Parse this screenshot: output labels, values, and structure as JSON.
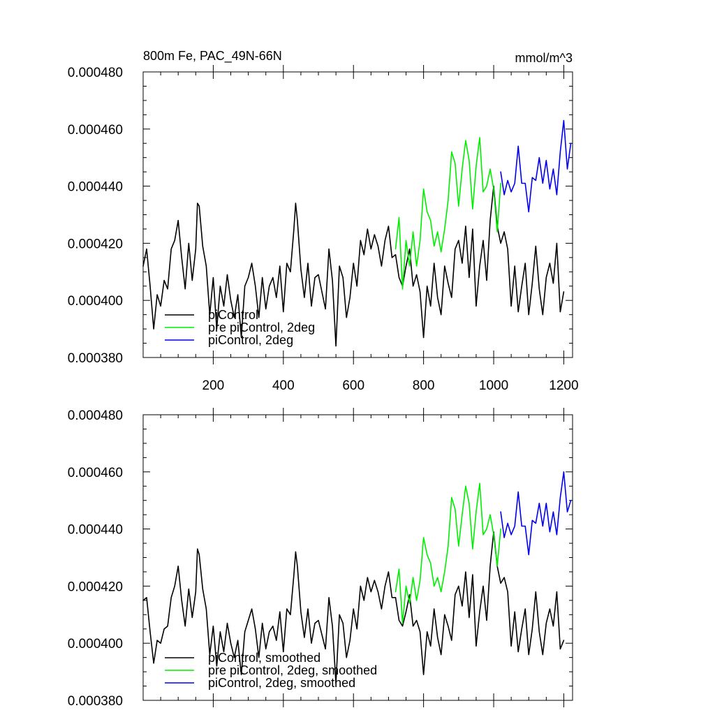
{
  "chart_data": [
    {
      "type": "line",
      "title": "800m Fe, PAC_49N-66N",
      "units": "mmol/m^3",
      "xlim": [
        0,
        1225
      ],
      "ylim": [
        0.00038,
        0.00048
      ],
      "xticks": [
        200,
        400,
        600,
        800,
        1000,
        1200
      ],
      "xtick_labels": [
        "200",
        "400",
        "600",
        "800",
        "1000",
        "1200"
      ],
      "yticks": [
        0.00038,
        0.0004,
        0.00042,
        0.00044,
        0.00046,
        0.00048
      ],
      "ytick_labels": [
        "0.000380",
        "0.000400",
        "0.000420",
        "0.000440",
        "0.000460",
        "0.000480"
      ],
      "legend_position": "bottom-left",
      "series": [
        {
          "name": "piControl",
          "color": "#000000",
          "x": [
            0,
            10,
            20,
            30,
            40,
            50,
            60,
            70,
            80,
            90,
            100,
            110,
            120,
            130,
            140,
            150,
            155,
            160,
            170,
            180,
            190,
            200,
            210,
            220,
            230,
            240,
            250,
            260,
            270,
            280,
            290,
            300,
            310,
            320,
            330,
            340,
            350,
            360,
            370,
            380,
            390,
            400,
            410,
            420,
            430,
            435,
            440,
            450,
            460,
            470,
            480,
            490,
            500,
            510,
            520,
            530,
            540,
            550,
            560,
            570,
            580,
            590,
            600,
            610,
            620,
            630,
            640,
            650,
            660,
            670,
            680,
            690,
            700,
            710,
            720,
            730,
            740,
            750,
            760,
            770,
            780,
            790,
            800,
            810,
            820,
            830,
            840,
            850,
            860,
            870,
            880,
            890,
            900,
            910,
            920,
            930,
            940,
            950,
            960,
            970,
            980,
            990,
            1000,
            1010,
            1020,
            1030,
            1040,
            1050,
            1060,
            1070,
            1080,
            1090,
            1100,
            1110,
            1120,
            1130,
            1140,
            1150,
            1160,
            1170,
            1180,
            1190,
            1200
          ],
          "values": [
            0.000412,
            0.000418,
            0.000405,
            0.00039,
            0.000402,
            0.000398,
            0.000407,
            0.000404,
            0.000418,
            0.000421,
            0.000428,
            0.000415,
            0.000404,
            0.00042,
            0.000407,
            0.000418,
            0.000434,
            0.000433,
            0.000419,
            0.000412,
            0.000395,
            0.000408,
            0.00039,
            0.000405,
            0.000398,
            0.000409,
            0.0004,
            0.000394,
            0.000402,
            0.000387,
            0.000405,
            0.000408,
            0.000413,
            0.000405,
            0.000394,
            0.000408,
            0.000397,
            0.000405,
            0.000408,
            0.000401,
            0.000412,
            0.000396,
            0.000413,
            0.00041,
            0.000425,
            0.000434,
            0.000428,
            0.000411,
            0.000401,
            0.000413,
            0.000398,
            0.000408,
            0.000409,
            0.000403,
            0.000397,
            0.000418,
            0.000407,
            0.000384,
            0.000412,
            0.000408,
            0.000394,
            0.000401,
            0.000413,
            0.000405,
            0.000421,
            0.000416,
            0.000425,
            0.000418,
            0.000423,
            0.000419,
            0.000412,
            0.000421,
            0.000426,
            0.000415,
            0.000416,
            0.000408,
            0.000405,
            0.000412,
            0.000418,
            0.000405,
            0.000409,
            0.000403,
            0.000387,
            0.000405,
            0.000398,
            0.000413,
            0.000401,
            0.000395,
            0.000412,
            0.000406,
            0.000401,
            0.000418,
            0.000421,
            0.000413,
            0.000426,
            0.000408,
            0.000425,
            0.000398,
            0.000412,
            0.000421,
            0.000407,
            0.000428,
            0.00044,
            0.000426,
            0.00042,
            0.000424,
            0.000418,
            0.000398,
            0.000412,
            0.000396,
            0.000405,
            0.000413,
            0.000395,
            0.000406,
            0.000419,
            0.000404,
            0.000395,
            0.000408,
            0.000413,
            0.000406,
            0.00042,
            0.000396,
            0.000403
          ]
        },
        {
          "name": "pre piControl, 2deg",
          "color": "#00ee00",
          "x": [
            720,
            730,
            740,
            750,
            760,
            770,
            780,
            790,
            800,
            810,
            820,
            830,
            840,
            850,
            860,
            870,
            880,
            890,
            900,
            910,
            920,
            930,
            940,
            950,
            960,
            970,
            980,
            990,
            1000,
            1010,
            1020
          ],
          "values": [
            0.000418,
            0.000429,
            0.000404,
            0.000421,
            0.000412,
            0.000424,
            0.000412,
            0.000421,
            0.000439,
            0.000431,
            0.000428,
            0.000419,
            0.000424,
            0.000417,
            0.000425,
            0.000435,
            0.000452,
            0.000448,
            0.000433,
            0.000446,
            0.000456,
            0.000449,
            0.000432,
            0.000447,
            0.000457,
            0.000438,
            0.00044,
            0.000446,
            0.000439,
            0.000424,
            0.000441
          ]
        },
        {
          "name": "piControl, 2deg",
          "color": "#0000ee",
          "x": [
            1020,
            1030,
            1040,
            1050,
            1060,
            1070,
            1080,
            1090,
            1100,
            1110,
            1120,
            1130,
            1140,
            1150,
            1160,
            1170,
            1180,
            1190,
            1200,
            1210,
            1220
          ],
          "values": [
            0.000445,
            0.000437,
            0.000442,
            0.000438,
            0.000441,
            0.000454,
            0.000441,
            0.000441,
            0.000431,
            0.000443,
            0.000442,
            0.00045,
            0.000441,
            0.000449,
            0.000439,
            0.000446,
            0.000437,
            0.000452,
            0.000463,
            0.000446,
            0.000455
          ]
        }
      ]
    },
    {
      "type": "line",
      "title": "",
      "units": "",
      "xlim": [
        0,
        1225
      ],
      "ylim": [
        0.00038,
        0.00048
      ],
      "xticks": [
        200,
        400,
        600,
        800,
        1000,
        1200
      ],
      "xtick_labels": [],
      "yticks": [
        0.00038,
        0.0004,
        0.00042,
        0.00044,
        0.00046,
        0.00048
      ],
      "ytick_labels": [
        "0.000380",
        "0.000400",
        "0.000420",
        "0.000440",
        "0.000460",
        "0.000480"
      ],
      "legend_position": "bottom-left",
      "series": [
        {
          "name": "piControl, smoothed",
          "color": "#000000",
          "x": [
            0,
            10,
            20,
            30,
            40,
            50,
            60,
            70,
            80,
            90,
            100,
            110,
            120,
            130,
            140,
            150,
            155,
            160,
            170,
            180,
            190,
            200,
            210,
            220,
            230,
            240,
            250,
            260,
            270,
            280,
            290,
            300,
            310,
            320,
            330,
            340,
            350,
            360,
            370,
            380,
            390,
            400,
            410,
            420,
            430,
            435,
            440,
            450,
            460,
            470,
            480,
            490,
            500,
            510,
            520,
            530,
            540,
            550,
            560,
            570,
            580,
            590,
            600,
            610,
            620,
            630,
            640,
            650,
            660,
            670,
            680,
            690,
            700,
            710,
            720,
            730,
            740,
            750,
            760,
            770,
            780,
            790,
            800,
            810,
            820,
            830,
            840,
            850,
            860,
            870,
            880,
            890,
            900,
            910,
            920,
            930,
            940,
            950,
            960,
            970,
            980,
            990,
            1000,
            1010,
            1020,
            1030,
            1040,
            1050,
            1060,
            1070,
            1080,
            1090,
            1100,
            1110,
            1120,
            1130,
            1140,
            1150,
            1160,
            1170,
            1180,
            1190,
            1200
          ],
          "values": [
            0.000415,
            0.000416,
            0.000404,
            0.000393,
            0.000401,
            0.0004,
            0.000405,
            0.000406,
            0.000416,
            0.00042,
            0.000427,
            0.000415,
            0.000406,
            0.000419,
            0.000409,
            0.000418,
            0.000433,
            0.000431,
            0.000419,
            0.000412,
            0.000396,
            0.000406,
            0.000392,
            0.000404,
            0.000397,
            0.000407,
            0.0004,
            0.000395,
            0.000401,
            0.000389,
            0.000404,
            0.000408,
            0.000412,
            0.000405,
            0.000395,
            0.000407,
            0.000398,
            0.000404,
            0.000406,
            0.000401,
            0.000411,
            0.000397,
            0.000412,
            0.00041,
            0.000424,
            0.000432,
            0.000427,
            0.000411,
            0.000402,
            0.000412,
            0.0004,
            0.000407,
            0.000408,
            0.000403,
            0.000398,
            0.000416,
            0.000406,
            0.000386,
            0.00041,
            0.000407,
            0.000395,
            0.000401,
            0.000412,
            0.000405,
            0.00042,
            0.000415,
            0.000423,
            0.000418,
            0.000422,
            0.000418,
            0.000412,
            0.00042,
            0.000425,
            0.000416,
            0.000416,
            0.000408,
            0.000406,
            0.000411,
            0.000417,
            0.000406,
            0.000408,
            0.000404,
            0.000389,
            0.000404,
            0.000399,
            0.000412,
            0.000402,
            0.000396,
            0.00041,
            0.000406,
            0.000401,
            0.000417,
            0.00042,
            0.000413,
            0.000425,
            0.000409,
            0.000424,
            0.000399,
            0.000411,
            0.00042,
            0.000408,
            0.000427,
            0.000439,
            0.000427,
            0.000421,
            0.000423,
            0.000418,
            0.000399,
            0.000411,
            0.000397,
            0.000405,
            0.000412,
            0.000396,
            0.000405,
            0.000418,
            0.000404,
            0.000396,
            0.000407,
            0.000412,
            0.000406,
            0.000418,
            0.000398,
            0.000401
          ]
        },
        {
          "name": "pre piControl, 2deg, smoothed",
          "color": "#00ee00",
          "x": [
            720,
            730,
            740,
            750,
            760,
            770,
            780,
            790,
            800,
            810,
            820,
            830,
            840,
            850,
            860,
            870,
            880,
            890,
            900,
            910,
            920,
            930,
            940,
            950,
            960,
            970,
            980,
            990,
            1000,
            1010,
            1020
          ],
          "values": [
            0.000418,
            0.000426,
            0.000407,
            0.00042,
            0.000414,
            0.000423,
            0.000415,
            0.000422,
            0.000437,
            0.000431,
            0.000428,
            0.00042,
            0.000423,
            0.000418,
            0.000425,
            0.000434,
            0.000451,
            0.000447,
            0.000434,
            0.000445,
            0.000455,
            0.000449,
            0.000433,
            0.000446,
            0.000456,
            0.000438,
            0.00044,
            0.000445,
            0.000438,
            0.000427,
            0.00044
          ]
        },
        {
          "name": "piControl, 2deg, smoothed",
          "color": "#0000ee",
          "x": [
            1020,
            1030,
            1040,
            1050,
            1060,
            1070,
            1080,
            1090,
            1100,
            1110,
            1120,
            1130,
            1140,
            1150,
            1160,
            1170,
            1180,
            1190,
            1200,
            1210,
            1220
          ],
          "values": [
            0.000446,
            0.000437,
            0.000442,
            0.000438,
            0.000441,
            0.000453,
            0.000441,
            0.000441,
            0.000431,
            0.000443,
            0.000442,
            0.000449,
            0.000441,
            0.000449,
            0.000439,
            0.000446,
            0.000438,
            0.000451,
            0.00046,
            0.000446,
            0.00045
          ]
        }
      ]
    }
  ]
}
